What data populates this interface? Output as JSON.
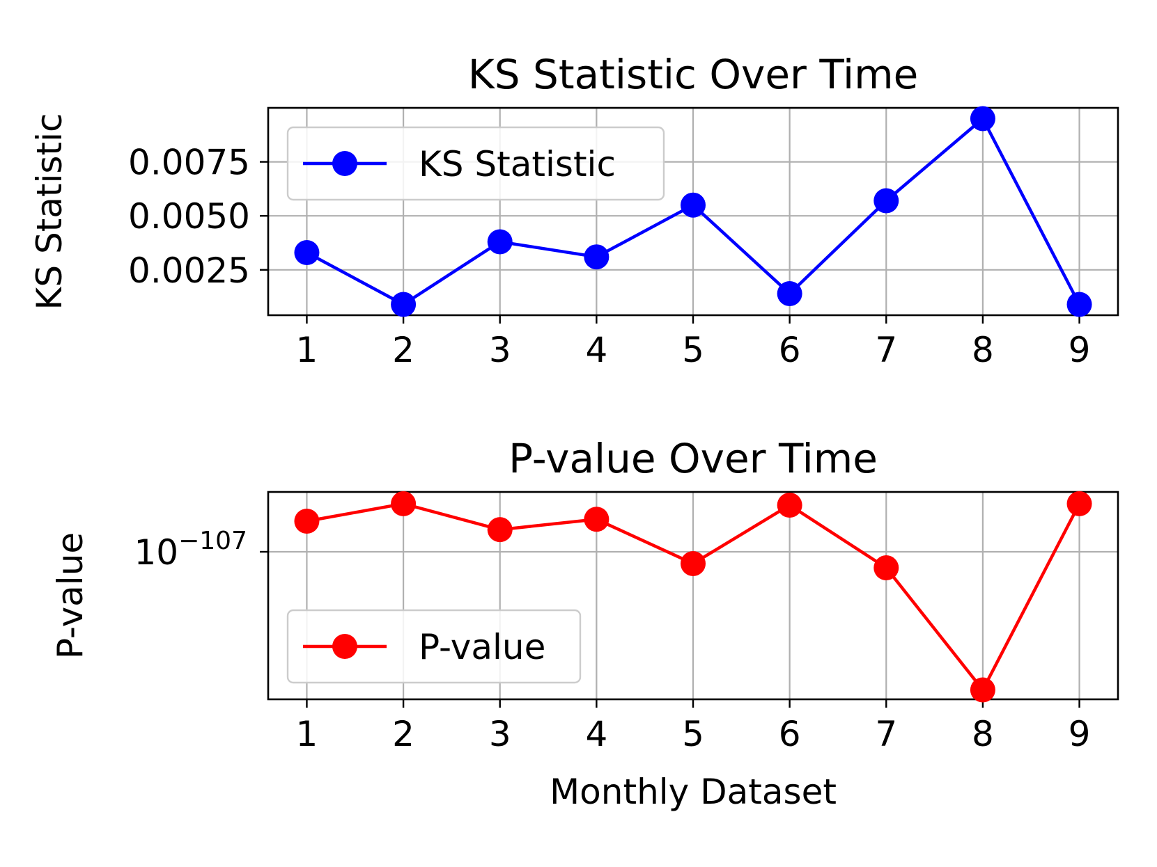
{
  "chart_data": [
    {
      "type": "line",
      "title": "KS Statistic Over Time",
      "xlabel": "",
      "ylabel": "KS Statistic",
      "x": [
        1,
        2,
        3,
        4,
        5,
        6,
        7,
        8,
        9
      ],
      "xticks": [
        "1",
        "2",
        "3",
        "4",
        "5",
        "6",
        "7",
        "8",
        "9"
      ],
      "xlim": [
        0.6,
        9.4
      ],
      "yticks": [
        0.0025,
        0.005,
        0.0075
      ],
      "ytick_labels": [
        "0.0025",
        "0.0050",
        "0.0075"
      ],
      "ylim": [
        0.0004,
        0.01
      ],
      "grid": true,
      "legend_position": "upper-left",
      "series": [
        {
          "name": "KS Statistic",
          "color": "#0000ff",
          "marker": "circle",
          "values": [
            0.0033,
            0.0009,
            0.0038,
            0.0031,
            0.0055,
            0.0014,
            0.0057,
            0.0095,
            0.0009
          ]
        }
      ]
    },
    {
      "type": "line",
      "title": "P-value Over Time",
      "xlabel": "Monthly Dataset",
      "ylabel": "P-value",
      "x": [
        1,
        2,
        3,
        4,
        5,
        6,
        7,
        8,
        9
      ],
      "xticks": [
        "1",
        "2",
        "3",
        "4",
        "5",
        "6",
        "7",
        "8",
        "9"
      ],
      "xlim": [
        0.6,
        9.4
      ],
      "yscale": "log",
      "y_exponent_ticks": [
        -107
      ],
      "y_exponent_tick_labels": [
        {
          "base": "10",
          "exponent": "−107"
        }
      ],
      "y_exponent_range": [
        -420,
        20
      ],
      "grid": true,
      "legend_position": "lower-left",
      "series": [
        {
          "name": "P-value",
          "color": "#ff0000",
          "marker": "circle",
          "log10_values": [
            -42,
            -5,
            -60,
            -38,
            -132,
            -8,
            -141,
            -400,
            -5
          ]
        }
      ]
    }
  ]
}
